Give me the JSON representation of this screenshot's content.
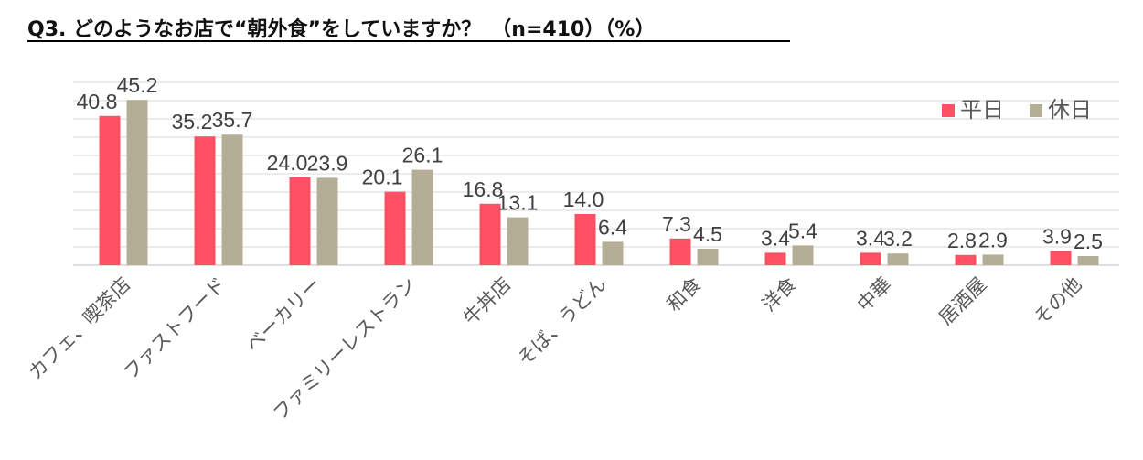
{
  "title": "Q3. どのようなお店で“朝外食”をしていますか？　（n=410）（%）",
  "chart_data": {
    "type": "bar",
    "categories": [
      "カフェ、喫茶店",
      "ファストフード",
      "ベーカリー",
      "ファミリーレストラン",
      "牛丼店",
      "そば、うどん",
      "和食",
      "洋食",
      "中華",
      "居酒屋",
      "その他"
    ],
    "series": [
      {
        "name": "平日",
        "color": "#ff5064",
        "values": [
          40.8,
          35.2,
          24.0,
          20.1,
          16.8,
          14.0,
          7.3,
          3.4,
          3.4,
          2.8,
          3.9
        ]
      },
      {
        "name": "休日",
        "color": "#b5ae96",
        "values": [
          45.2,
          35.7,
          23.9,
          26.1,
          13.1,
          6.4,
          4.5,
          5.4,
          3.2,
          2.9,
          2.5
        ]
      }
    ],
    "ylim": [
      0,
      50
    ],
    "grid": true,
    "legend": "top-right"
  }
}
